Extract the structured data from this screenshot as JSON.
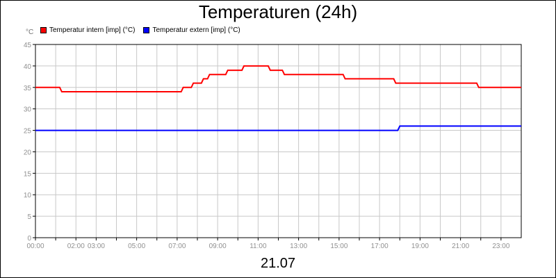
{
  "chart_data": {
    "type": "line",
    "title": "Temperaturen (24h)",
    "date_label": "21.07",
    "y_unit": "°C",
    "ylim": [
      0,
      45
    ],
    "y_ticks": [
      0,
      5,
      10,
      15,
      20,
      25,
      30,
      35,
      40,
      45
    ],
    "xlim": [
      0,
      24
    ],
    "x_gridlines": [
      0,
      1,
      2,
      3,
      4,
      5,
      6,
      7,
      8,
      9,
      10,
      11,
      12,
      13,
      14,
      15,
      16,
      17,
      18,
      19,
      20,
      21,
      22,
      23
    ],
    "x_tick_labels": [
      {
        "x": 0,
        "label": "00:00"
      },
      {
        "x": 2,
        "label": "02:00"
      },
      {
        "x": 3,
        "label": "03:00"
      },
      {
        "x": 5,
        "label": "05:00"
      },
      {
        "x": 7,
        "label": "07:00"
      },
      {
        "x": 9,
        "label": "09:00"
      },
      {
        "x": 11,
        "label": "11:00"
      },
      {
        "x": 13,
        "label": "13:00"
      },
      {
        "x": 15,
        "label": "15:00"
      },
      {
        "x": 17,
        "label": "17:00"
      },
      {
        "x": 19,
        "label": "19:00"
      },
      {
        "x": 21,
        "label": "21:00"
      },
      {
        "x": 23,
        "label": "23:00"
      }
    ],
    "grid": true,
    "legend_position": "top-left",
    "series": [
      {
        "name": "Temperatur intern [imp] (°C)",
        "color": "#ff0000",
        "points": [
          [
            0,
            35
          ],
          [
            1.2,
            35
          ],
          [
            1.3,
            34
          ],
          [
            7.2,
            34
          ],
          [
            7.3,
            35
          ],
          [
            7.7,
            35
          ],
          [
            7.8,
            36
          ],
          [
            8.2,
            36
          ],
          [
            8.3,
            37
          ],
          [
            8.5,
            37
          ],
          [
            8.6,
            38
          ],
          [
            9.4,
            38
          ],
          [
            9.5,
            39
          ],
          [
            10.2,
            39
          ],
          [
            10.3,
            40
          ],
          [
            11.5,
            40
          ],
          [
            11.6,
            39
          ],
          [
            12.2,
            39
          ],
          [
            12.3,
            38
          ],
          [
            15.2,
            38
          ],
          [
            15.3,
            37
          ],
          [
            17.7,
            37
          ],
          [
            17.8,
            36
          ],
          [
            21.8,
            36
          ],
          [
            21.9,
            35
          ],
          [
            24,
            35
          ]
        ]
      },
      {
        "name": "Temperatur extern [imp] (°C)",
        "color": "#0000ff",
        "points": [
          [
            0,
            25
          ],
          [
            17.9,
            25
          ],
          [
            18,
            26
          ],
          [
            24,
            26
          ]
        ]
      }
    ]
  }
}
